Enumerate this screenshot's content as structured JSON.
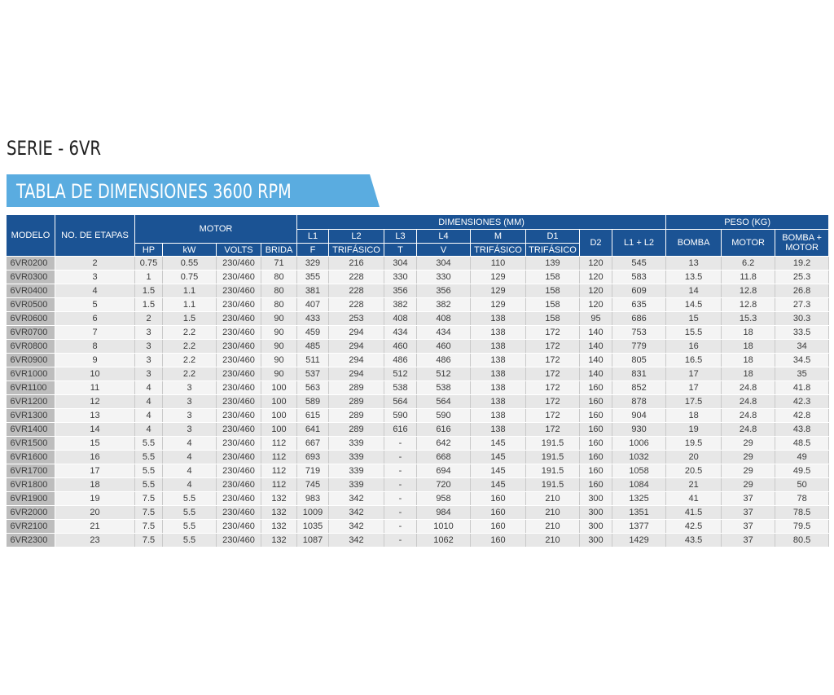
{
  "serie_title": "SERIE - 6VR",
  "banner_title": "TABLA DE DIMENSIONES 3600 RPM",
  "header": {
    "modelo": "MODELO",
    "etapas": "NO. DE ETAPAS",
    "motor": "MOTOR",
    "dimensiones": "DIMENSIONES (MM)",
    "peso": "PESO (KG)",
    "hp": "HP",
    "kw": "kW",
    "volts": "VOLTS",
    "brida": "BRIDA",
    "l1_top": "L1",
    "l1_bottom": "F",
    "l2_top": "L2",
    "l2_bottom": "TRIFÁSICO",
    "l3_top": "L3",
    "l3_bottom": "T",
    "l4_top": "L4",
    "l4_bottom": "V",
    "m_top": "M",
    "m_bottom": "TRIFÁSICO",
    "d1_top": "D1",
    "d1_bottom": "TRIFÁSICO",
    "d2": "D2",
    "l1l2": "L1 + L2",
    "bomba": "BOMBA",
    "motor_peso": "MOTOR",
    "bomba_motor_top": "BOMBA +",
    "bomba_motor_bottom": "MOTOR"
  },
  "rows": [
    [
      "6VR0200",
      "2",
      "0.75",
      "0.55",
      "230/460",
      "71",
      "329",
      "216",
      "304",
      "304",
      "110",
      "139",
      "120",
      "545",
      "13",
      "6.2",
      "19.2"
    ],
    [
      "6VR0300",
      "3",
      "1",
      "0.75",
      "230/460",
      "80",
      "355",
      "228",
      "330",
      "330",
      "129",
      "158",
      "120",
      "583",
      "13.5",
      "11.8",
      "25.3"
    ],
    [
      "6VR0400",
      "4",
      "1.5",
      "1.1",
      "230/460",
      "80",
      "381",
      "228",
      "356",
      "356",
      "129",
      "158",
      "120",
      "609",
      "14",
      "12.8",
      "26.8"
    ],
    [
      "6VR0500",
      "5",
      "1.5",
      "1.1",
      "230/460",
      "80",
      "407",
      "228",
      "382",
      "382",
      "129",
      "158",
      "120",
      "635",
      "14.5",
      "12.8",
      "27.3"
    ],
    [
      "6VR0600",
      "6",
      "2",
      "1.5",
      "230/460",
      "90",
      "433",
      "253",
      "408",
      "408",
      "138",
      "158",
      "95",
      "686",
      "15",
      "15.3",
      "30.3"
    ],
    [
      "6VR0700",
      "7",
      "3",
      "2.2",
      "230/460",
      "90",
      "459",
      "294",
      "434",
      "434",
      "138",
      "172",
      "140",
      "753",
      "15.5",
      "18",
      "33.5"
    ],
    [
      "6VR0800",
      "8",
      "3",
      "2.2",
      "230/460",
      "90",
      "485",
      "294",
      "460",
      "460",
      "138",
      "172",
      "140",
      "779",
      "16",
      "18",
      "34"
    ],
    [
      "6VR0900",
      "9",
      "3",
      "2.2",
      "230/460",
      "90",
      "511",
      "294",
      "486",
      "486",
      "138",
      "172",
      "140",
      "805",
      "16.5",
      "18",
      "34.5"
    ],
    [
      "6VR1000",
      "10",
      "3",
      "2.2",
      "230/460",
      "90",
      "537",
      "294",
      "512",
      "512",
      "138",
      "172",
      "140",
      "831",
      "17",
      "18",
      "35"
    ],
    [
      "6VR1100",
      "11",
      "4",
      "3",
      "230/460",
      "100",
      "563",
      "289",
      "538",
      "538",
      "138",
      "172",
      "160",
      "852",
      "17",
      "24.8",
      "41.8"
    ],
    [
      "6VR1200",
      "12",
      "4",
      "3",
      "230/460",
      "100",
      "589",
      "289",
      "564",
      "564",
      "138",
      "172",
      "160",
      "878",
      "17.5",
      "24.8",
      "42.3"
    ],
    [
      "6VR1300",
      "13",
      "4",
      "3",
      "230/460",
      "100",
      "615",
      "289",
      "590",
      "590",
      "138",
      "172",
      "160",
      "904",
      "18",
      "24.8",
      "42.8"
    ],
    [
      "6VR1400",
      "14",
      "4",
      "3",
      "230/460",
      "100",
      "641",
      "289",
      "616",
      "616",
      "138",
      "172",
      "160",
      "930",
      "19",
      "24.8",
      "43.8"
    ],
    [
      "6VR1500",
      "15",
      "5.5",
      "4",
      "230/460",
      "112",
      "667",
      "339",
      "-",
      "642",
      "145",
      "191.5",
      "160",
      "1006",
      "19.5",
      "29",
      "48.5"
    ],
    [
      "6VR1600",
      "16",
      "5.5",
      "4",
      "230/460",
      "112",
      "693",
      "339",
      "-",
      "668",
      "145",
      "191.5",
      "160",
      "1032",
      "20",
      "29",
      "49"
    ],
    [
      "6VR1700",
      "17",
      "5.5",
      "4",
      "230/460",
      "112",
      "719",
      "339",
      "-",
      "694",
      "145",
      "191.5",
      "160",
      "1058",
      "20.5",
      "29",
      "49.5"
    ],
    [
      "6VR1800",
      "18",
      "5.5",
      "4",
      "230/460",
      "112",
      "745",
      "339",
      "-",
      "720",
      "145",
      "191.5",
      "160",
      "1084",
      "21",
      "29",
      "50"
    ],
    [
      "6VR1900",
      "19",
      "7.5",
      "5.5",
      "230/460",
      "132",
      "983",
      "342",
      "-",
      "958",
      "160",
      "210",
      "300",
      "1325",
      "41",
      "37",
      "78"
    ],
    [
      "6VR2000",
      "20",
      "7.5",
      "5.5",
      "230/460",
      "132",
      "1009",
      "342",
      "-",
      "984",
      "160",
      "210",
      "300",
      "1351",
      "41.5",
      "37",
      "78.5"
    ],
    [
      "6VR2100",
      "21",
      "7.5",
      "5.5",
      "230/460",
      "132",
      "1035",
      "342",
      "-",
      "1010",
      "160",
      "210",
      "300",
      "1377",
      "42.5",
      "37",
      "79.5"
    ],
    [
      "6VR2300",
      "23",
      "7.5",
      "5.5",
      "230/460",
      "132",
      "1087",
      "342",
      "-",
      "1062",
      "160",
      "210",
      "300",
      "1429",
      "43.5",
      "37",
      "80.5"
    ]
  ]
}
